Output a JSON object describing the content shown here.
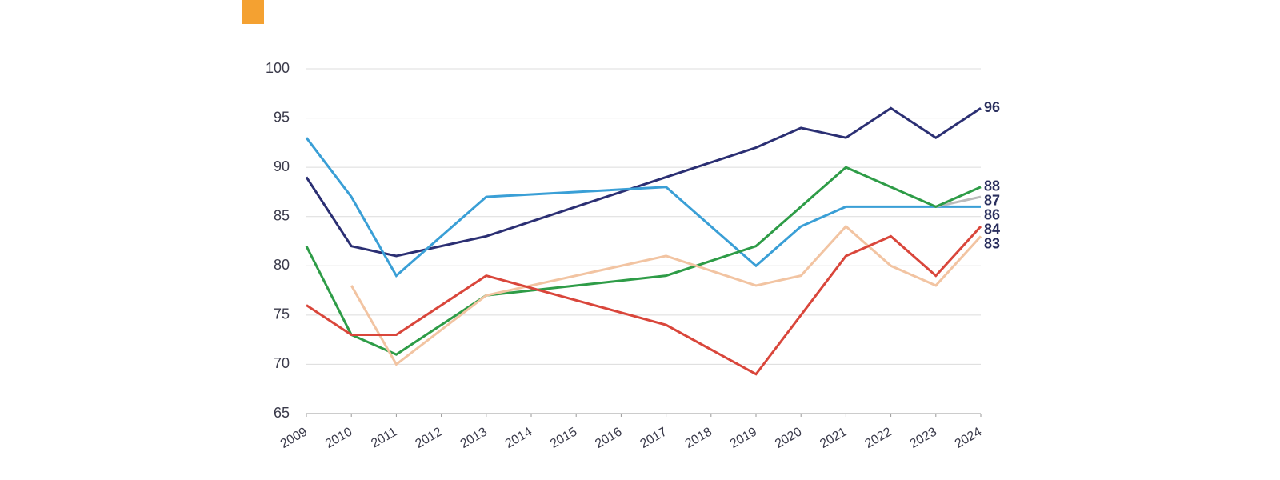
{
  "chart_data": {
    "type": "line",
    "xlim": [
      2009,
      2024
    ],
    "xticks": [
      2009,
      2010,
      2011,
      2012,
      2013,
      2014,
      2015,
      2016,
      2017,
      2018,
      2019,
      2020,
      2021,
      2022,
      2023,
      2024
    ],
    "ylim": [
      65,
      100
    ],
    "yticks": [
      65,
      70,
      75,
      80,
      85,
      90,
      95,
      100
    ],
    "grid": true,
    "series": [
      {
        "color": "#2b2f73",
        "x": [
          2009,
          2010,
          2011,
          2013,
          2017,
          2019,
          2020,
          2021,
          2022,
          2023,
          2024
        ],
        "values": [
          89,
          82,
          81,
          83,
          89,
          92,
          94,
          93,
          96,
          93,
          96
        ]
      },
      {
        "color": "#3a9fd6",
        "x": [
          2009,
          2010,
          2011,
          2013,
          2017,
          2019,
          2020,
          2021,
          2022,
          2023,
          2024
        ],
        "values": [
          93,
          87,
          79,
          87,
          88,
          80,
          84,
          86,
          86,
          86,
          86
        ]
      },
      {
        "color": "#bbbbbb",
        "x": [
          2023,
          2024
        ],
        "values": [
          86,
          87
        ]
      },
      {
        "color": "#2e9c47",
        "x": [
          2009,
          2010,
          2011,
          2013,
          2017,
          2019,
          2021,
          2023,
          2024
        ],
        "values": [
          82,
          73,
          71,
          77,
          79,
          82,
          90,
          86,
          88
        ]
      },
      {
        "color": "#f2c4a2",
        "x": [
          2010,
          2011,
          2013,
          2017,
          2019,
          2020,
          2021,
          2022,
          2023,
          2024
        ],
        "values": [
          78,
          70,
          77,
          81,
          78,
          79,
          84,
          80,
          78,
          83
        ]
      },
      {
        "color": "#d9463b",
        "x": [
          2009,
          2010,
          2011,
          2013,
          2017,
          2019,
          2021,
          2022,
          2023,
          2024
        ],
        "values": [
          76,
          73,
          73,
          79,
          74,
          69,
          81,
          83,
          79,
          84
        ]
      }
    ]
  }
}
